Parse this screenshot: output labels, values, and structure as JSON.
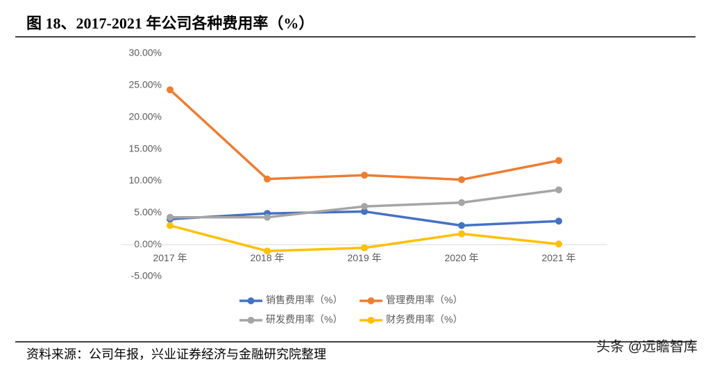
{
  "chart_data": {
    "type": "line",
    "title": "图 18、2017-2021 年公司各种费用率（%）",
    "categories": [
      "2017 年",
      "2018 年",
      "2019 年",
      "2020 年",
      "2021 年"
    ],
    "series": [
      {
        "name": "销售费用率（%）",
        "color": "#4472c4",
        "values": [
          4.0,
          4.9,
          5.2,
          3.0,
          3.7
        ]
      },
      {
        "name": "管理费用率（%）",
        "color": "#ed7d31",
        "values": [
          24.3,
          10.3,
          10.9,
          10.2,
          13.2
        ]
      },
      {
        "name": "研发费用率（%）",
        "color": "#a5a5a5",
        "values": [
          4.3,
          4.3,
          6.0,
          6.6,
          8.6
        ]
      },
      {
        "name": "财务费用率（%）",
        "color": "#ffc000",
        "values": [
          3.0,
          -1.0,
          -0.5,
          1.7,
          0.1
        ]
      }
    ],
    "ylim": [
      -5,
      30
    ],
    "yticks": [
      {
        "value": -5,
        "label": "-5.00%"
      },
      {
        "value": 0,
        "label": "0.00%"
      },
      {
        "value": 5,
        "label": "5.00%"
      },
      {
        "value": 10,
        "label": "10.00%"
      },
      {
        "value": 15,
        "label": "15.00%"
      },
      {
        "value": 20,
        "label": "20.00%"
      },
      {
        "value": 25,
        "label": "25.00%"
      },
      {
        "value": 30,
        "label": "30.00%"
      }
    ],
    "grid": false,
    "legend": "bottom"
  },
  "footer": {
    "source": "资料来源：公司年报，兴业证券经济与金融研究院整理",
    "watermark": "头条 @远瞻智库"
  }
}
